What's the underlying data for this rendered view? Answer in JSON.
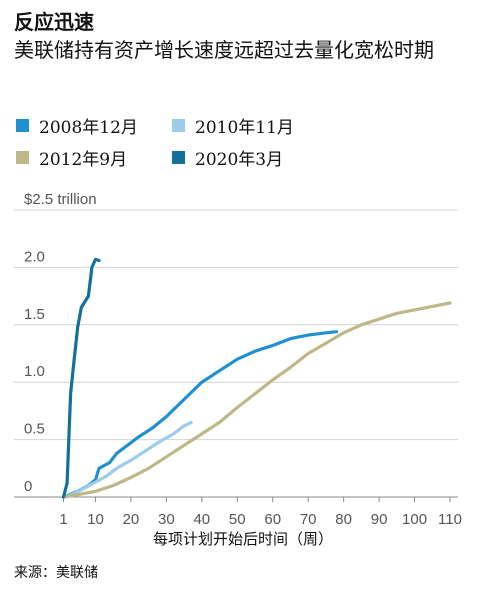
{
  "chart_data": {
    "type": "line",
    "title": "反应迅速",
    "subtitle": "美联储持有资产增长速度远超过去量化宽松时期",
    "xlabel": "每项计划开始后时间（周）",
    "ylabel_unit_tick": "$2.5 trillion",
    "source": "来源：美联储",
    "xlim": [
      0,
      110
    ],
    "ylim": [
      0,
      2.5
    ],
    "x_ticks": [
      1,
      10,
      20,
      30,
      40,
      50,
      60,
      70,
      80,
      90,
      100,
      110
    ],
    "x_tick_labels": [
      "1",
      "10",
      "20",
      "30",
      "40",
      "50",
      "60",
      "70",
      "80",
      "90",
      "100",
      "110"
    ],
    "y_ticks": [
      0,
      0.5,
      1.0,
      1.5,
      2.0,
      2.5
    ],
    "y_tick_labels": [
      "0",
      "0.5",
      "1.0",
      "1.5",
      "2.0",
      "$2.5 trillion"
    ],
    "grid": true,
    "legend_placement": "top-left",
    "series": [
      {
        "name": "2008年12月",
        "color": "#1f91d0",
        "x": [
          1,
          5,
          8,
          10,
          11,
          14,
          16,
          19,
          22,
          26,
          30,
          35,
          40,
          45,
          50,
          55,
          60,
          65,
          70,
          75,
          78
        ],
        "y": [
          0,
          0.05,
          0.1,
          0.15,
          0.25,
          0.3,
          0.38,
          0.45,
          0.52,
          0.6,
          0.7,
          0.85,
          1.0,
          1.1,
          1.2,
          1.27,
          1.32,
          1.38,
          1.41,
          1.43,
          1.44
        ]
      },
      {
        "name": "2010年11月",
        "color": "#9ccbec",
        "x": [
          1,
          4,
          7,
          10,
          13,
          16,
          20,
          24,
          28,
          32,
          35,
          37
        ],
        "y": [
          0,
          0.03,
          0.08,
          0.13,
          0.18,
          0.25,
          0.32,
          0.4,
          0.48,
          0.55,
          0.62,
          0.65
        ]
      },
      {
        "name": "2012年9月",
        "color": "#bdb789",
        "x": [
          1,
          5,
          10,
          15,
          20,
          25,
          30,
          35,
          40,
          45,
          50,
          55,
          60,
          65,
          70,
          75,
          80,
          85,
          90,
          95,
          100,
          105,
          110
        ],
        "y": [
          0,
          0.02,
          0.05,
          0.1,
          0.17,
          0.25,
          0.35,
          0.45,
          0.55,
          0.65,
          0.78,
          0.9,
          1.02,
          1.13,
          1.25,
          1.34,
          1.43,
          1.5,
          1.55,
          1.6,
          1.63,
          1.66,
          1.69
        ]
      },
      {
        "name": "2020年3月",
        "color": "#13709b",
        "x": [
          1,
          2,
          3,
          4,
          5,
          6,
          7,
          8,
          9,
          10,
          11
        ],
        "y": [
          0,
          0.12,
          0.9,
          1.2,
          1.48,
          1.65,
          1.7,
          1.75,
          2.0,
          2.07,
          2.06
        ]
      }
    ]
  }
}
